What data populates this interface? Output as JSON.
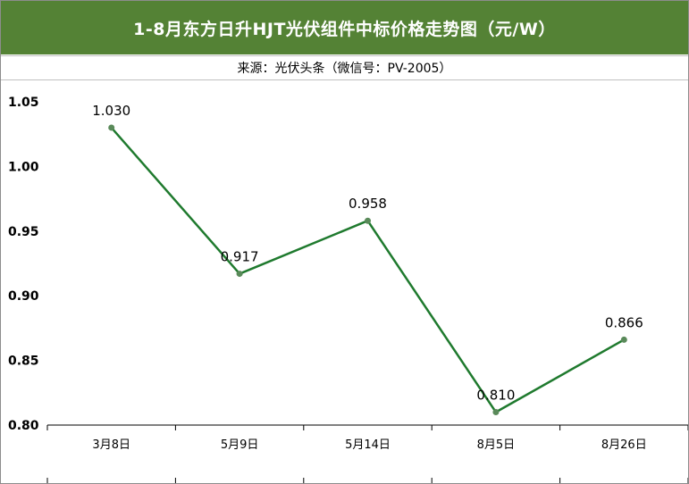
{
  "chart_data": {
    "type": "line",
    "title": "1-8月东方日升HJT光伏组件中标价格走势图（元/W）",
    "subtitle": "来源：光伏头条（微信号：PV-2005）",
    "xlabel": "",
    "ylabel": "",
    "categories": [
      "3月8日",
      "5月9日",
      "5月14日",
      "8月5日",
      "8月26日"
    ],
    "series": [
      {
        "values": [
          1.03,
          0.917,
          0.958,
          0.81,
          0.866
        ],
        "labels": [
          "1.030",
          "0.917",
          "0.958",
          "0.810",
          "0.866"
        ],
        "color": "#1f7a2e",
        "marker_color": "#5a8a5a"
      }
    ],
    "ylim": [
      0.8,
      1.05
    ],
    "yticks": [
      "0.80",
      "0.85",
      "0.90",
      "0.95",
      "1.00",
      "1.05"
    ],
    "grid": false,
    "legend": "none"
  },
  "colors": {
    "title_bg": "#548235",
    "title_text": "#ffffff"
  }
}
